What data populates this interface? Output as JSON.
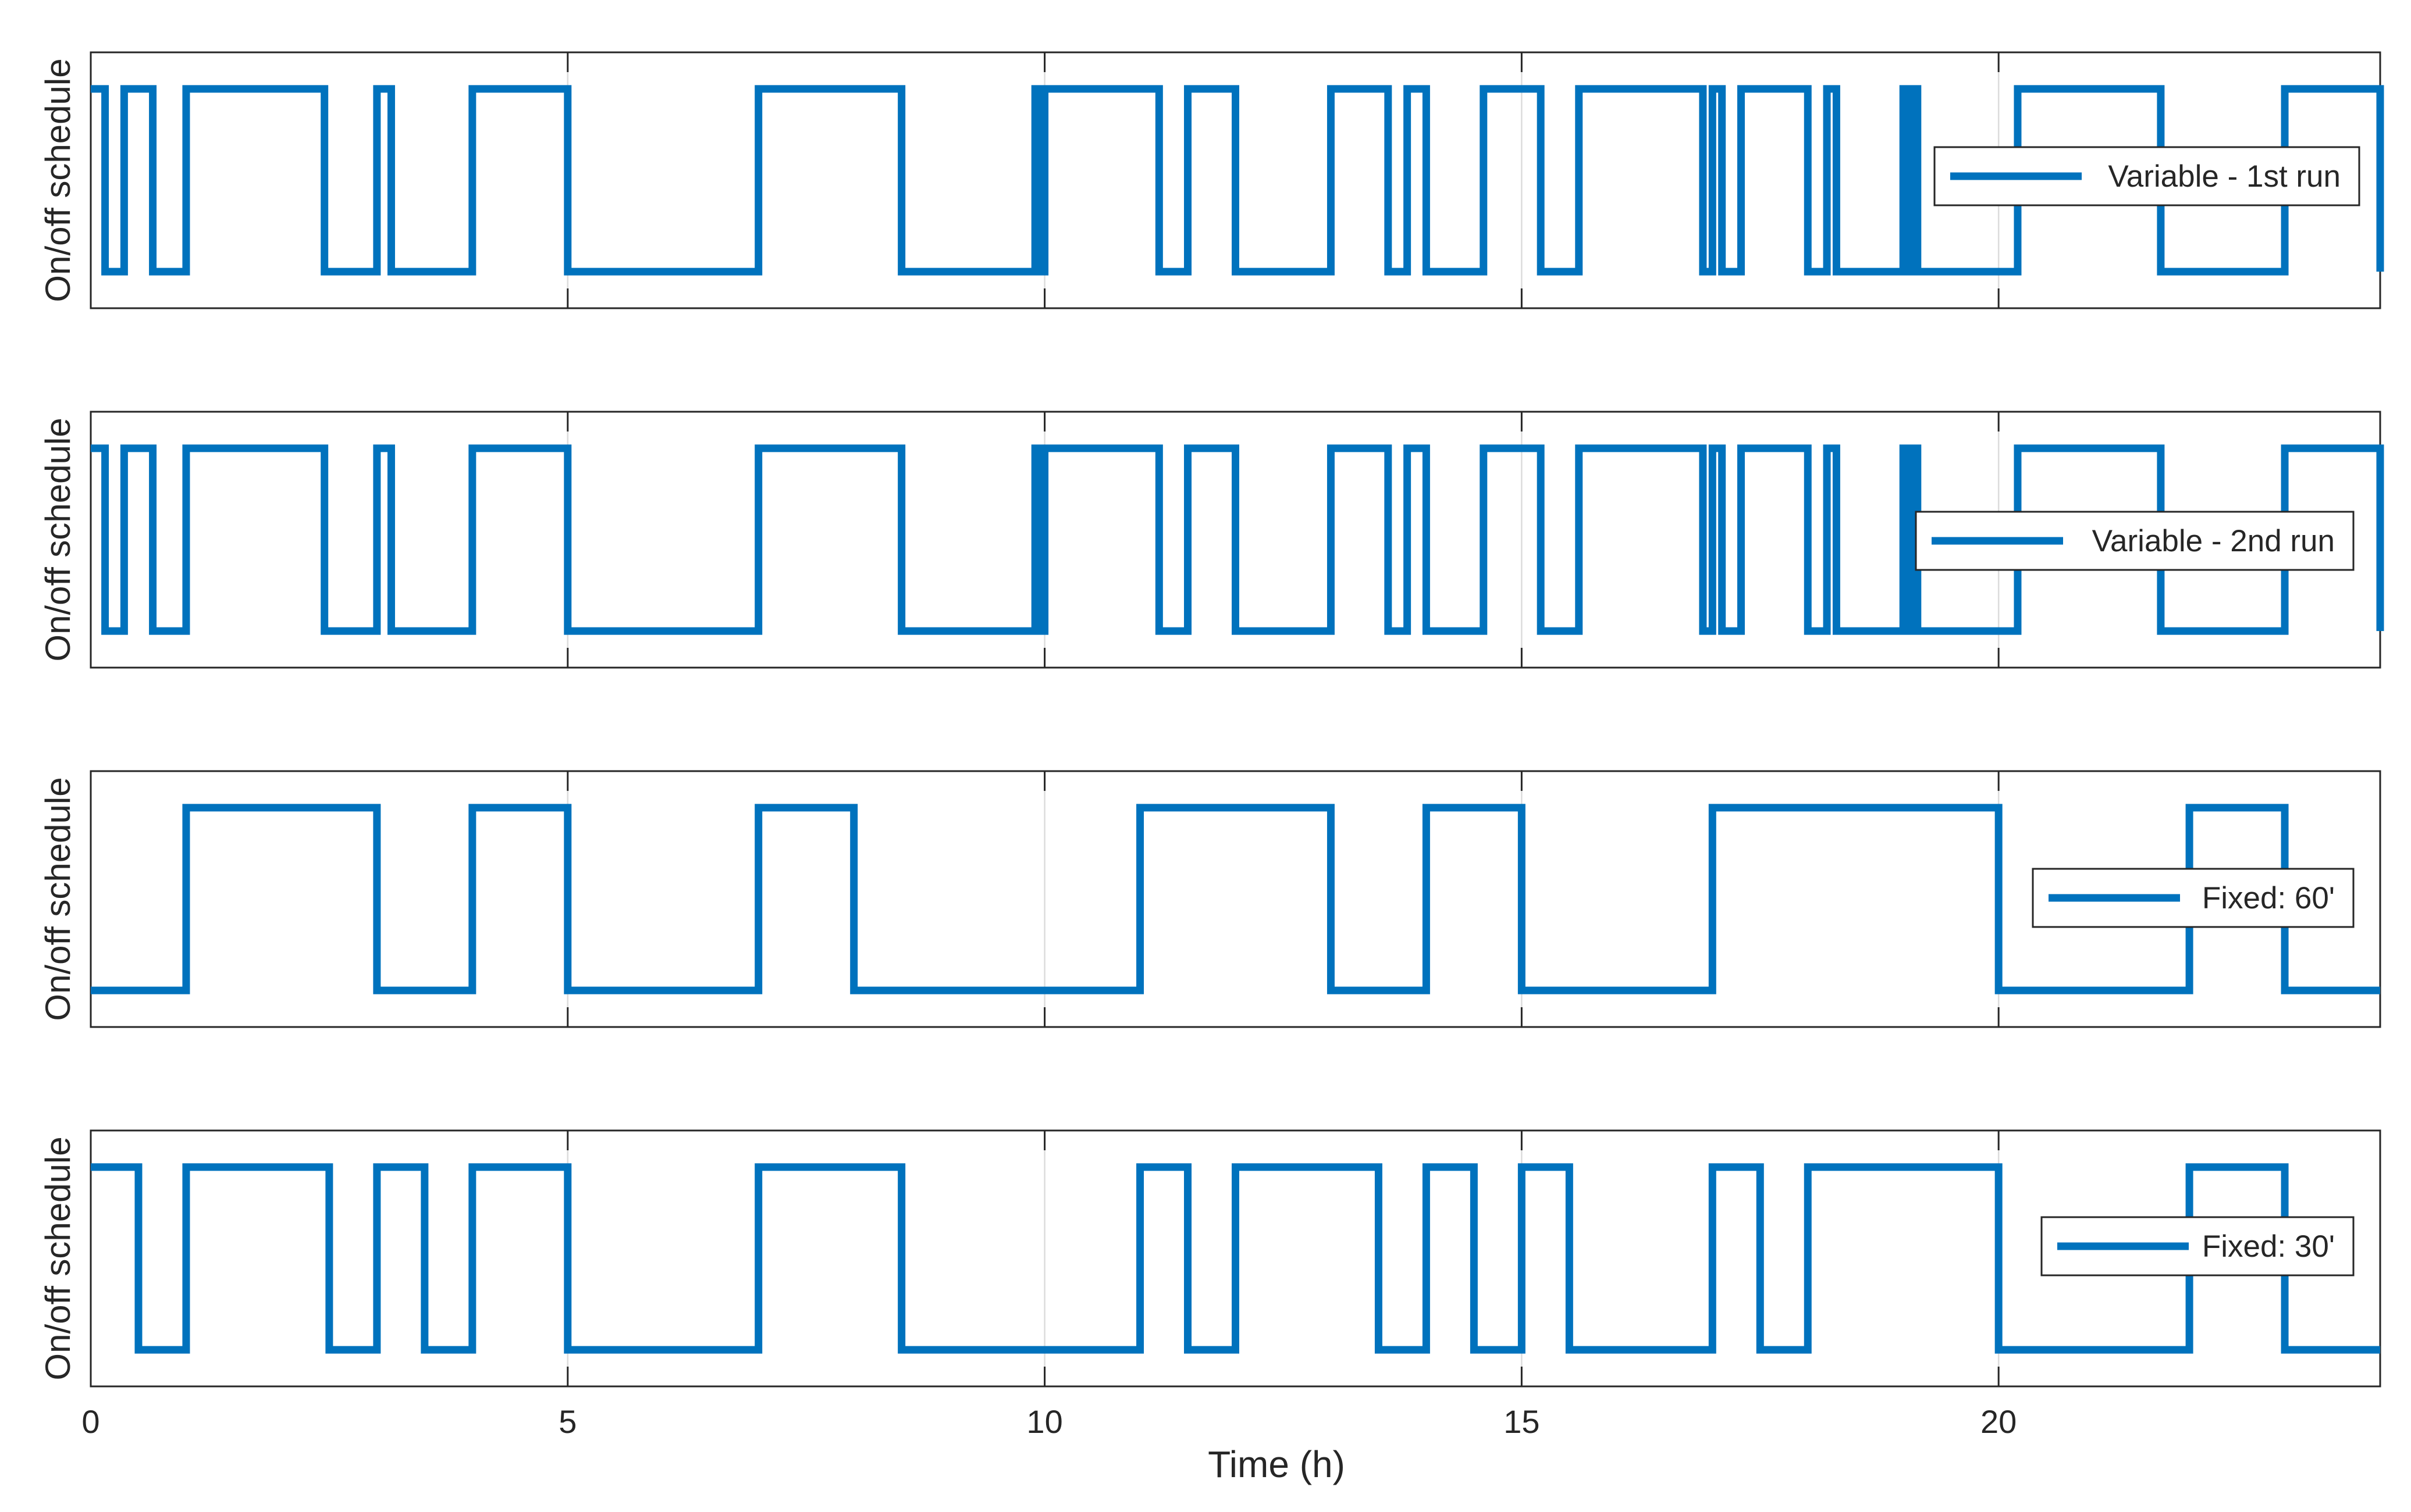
{
  "chart_data": [
    {
      "type": "line",
      "step": true,
      "ylabel": "On/off schedule",
      "legend": "Variable - 1st run",
      "legend_placement": "right",
      "color": "#0072BD",
      "xlim": [
        0,
        24
      ],
      "ylim": [
        -0.2,
        1.2
      ],
      "xticks": [
        0,
        5,
        10,
        15,
        20
      ],
      "grid": true,
      "x": [
        0,
        0.15,
        0.35,
        0.65,
        1,
        2.45,
        3,
        3.15,
        4,
        5,
        7,
        8.5,
        9.9,
        9.95,
        10,
        11.2,
        11.5,
        12,
        13,
        13.6,
        13.8,
        14,
        14.6,
        15.2,
        15.6,
        16.9,
        17,
        17.1,
        17.3,
        18,
        18.2,
        18.3,
        19,
        19.05,
        19.1,
        19.15,
        20.2,
        21.7,
        23,
        24
      ],
      "y": [
        1,
        0,
        1,
        0,
        1,
        0,
        1,
        0,
        1,
        0,
        1,
        0,
        1,
        0,
        1,
        0,
        1,
        0,
        1,
        0,
        1,
        0,
        1,
        0,
        1,
        0,
        1,
        0,
        1,
        0,
        1,
        0,
        1,
        0,
        1,
        0,
        1,
        0,
        1,
        0
      ]
    },
    {
      "type": "line",
      "step": true,
      "ylabel": "On/off schedule",
      "legend": "Variable - 2nd run",
      "legend_placement": "right",
      "color": "#0072BD",
      "xlim": [
        0,
        24
      ],
      "ylim": [
        -0.2,
        1.2
      ],
      "xticks": [
        0,
        5,
        10,
        15,
        20
      ],
      "grid": true,
      "x": [
        0,
        0.15,
        0.35,
        0.65,
        1,
        2.45,
        3,
        3.15,
        4,
        5,
        7,
        8.5,
        9.9,
        9.95,
        10,
        11.2,
        11.5,
        12,
        13,
        13.6,
        13.8,
        14,
        14.6,
        15.2,
        15.6,
        16.9,
        17,
        17.1,
        17.3,
        18,
        18.2,
        18.3,
        19,
        19.05,
        19.1,
        19.15,
        20.2,
        21.7,
        23,
        24
      ],
      "y": [
        1,
        0,
        1,
        0,
        1,
        0,
        1,
        0,
        1,
        0,
        1,
        0,
        1,
        0,
        1,
        0,
        1,
        0,
        1,
        0,
        1,
        0,
        1,
        0,
        1,
        0,
        1,
        0,
        1,
        0,
        1,
        0,
        1,
        0,
        1,
        0,
        1,
        0,
        1,
        0
      ]
    },
    {
      "type": "line",
      "step": true,
      "ylabel": "On/off schedule",
      "legend": "Fixed: 60'",
      "legend_placement": "right",
      "color": "#0072BD",
      "xlim": [
        0,
        24
      ],
      "ylim": [
        -0.2,
        1.2
      ],
      "xticks": [
        0,
        5,
        10,
        15,
        20
      ],
      "grid": true,
      "x": [
        0,
        1,
        3,
        4,
        5,
        7,
        8,
        11,
        13,
        14,
        15,
        17,
        20,
        22,
        23,
        24
      ],
      "y": [
        0,
        1,
        0,
        1,
        0,
        1,
        0,
        1,
        0,
        1,
        0,
        1,
        0,
        1,
        0,
        0
      ]
    },
    {
      "type": "line",
      "step": true,
      "ylabel": "On/off schedule",
      "xlabel": "Time (h)",
      "legend": "Fixed: 30'",
      "legend_placement": "right",
      "color": "#0072BD",
      "xlim": [
        0,
        24
      ],
      "ylim": [
        -0.2,
        1.2
      ],
      "xticks": [
        0,
        5,
        10,
        15,
        20
      ],
      "xtick_labels": [
        "0",
        "5",
        "10",
        "15",
        "20"
      ],
      "grid": true,
      "x": [
        0,
        0.5,
        1,
        2.5,
        3,
        3.5,
        4,
        5,
        7,
        8.5,
        11,
        11.5,
        12,
        13.5,
        14,
        14.5,
        15,
        15.5,
        17,
        17.5,
        18,
        20,
        22,
        23,
        24
      ],
      "y": [
        1,
        0,
        1,
        0,
        1,
        0,
        1,
        0,
        1,
        0,
        1,
        0,
        1,
        0,
        1,
        0,
        1,
        0,
        1,
        0,
        1,
        0,
        1,
        0,
        0
      ]
    }
  ]
}
